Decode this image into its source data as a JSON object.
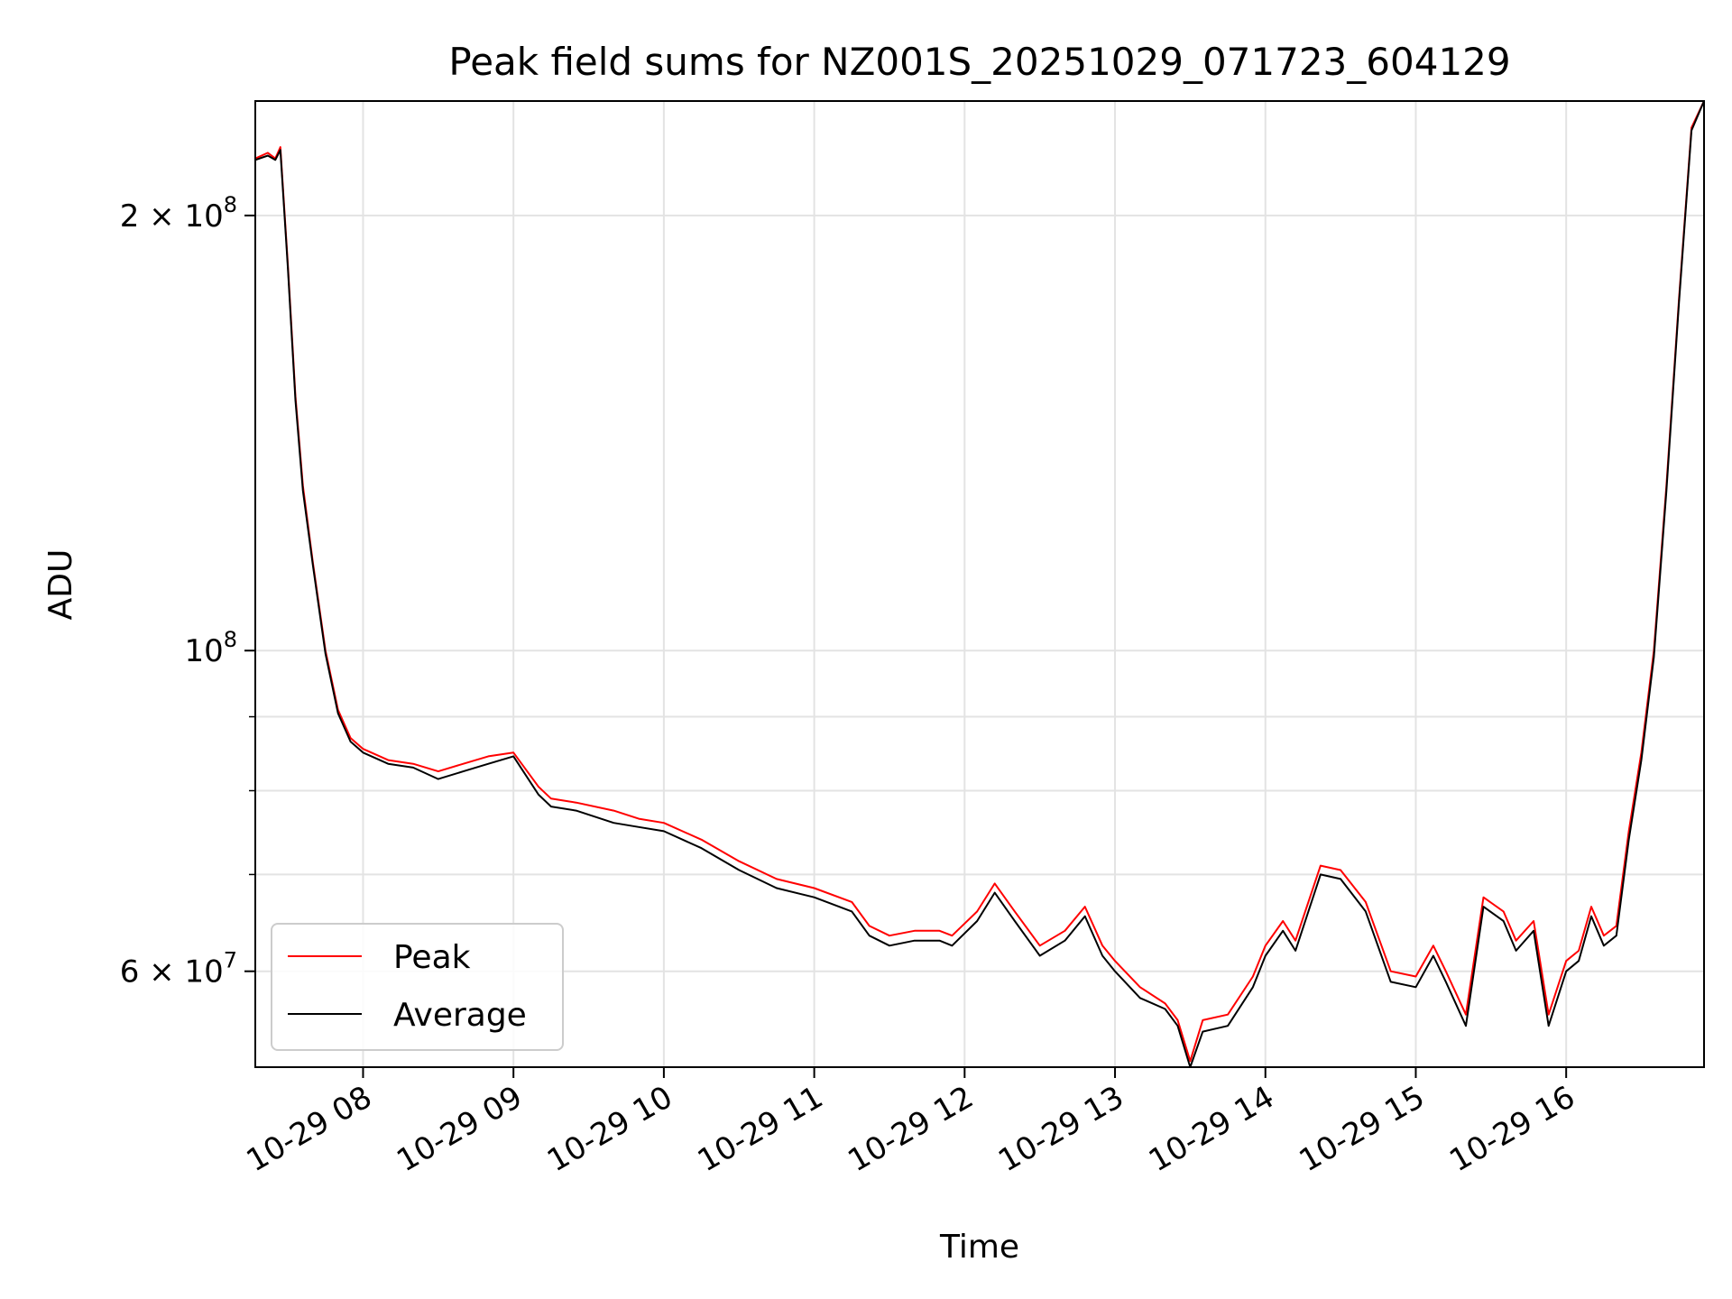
{
  "chart_data": {
    "type": "line",
    "title": "Peak field sums for NZ001S_20251029_071723_604129",
    "xlabel": "Time",
    "ylabel": "ADU",
    "x_range": [
      "2025-10-29 07:17",
      "2025-10-29 16:55"
    ],
    "ylim": [
      51500000,
      240000000
    ],
    "y_scale": "log",
    "grid": true,
    "legend_position": "lower-left",
    "x_ticks": [
      "10-29 08",
      "10-29 09",
      "10-29 10",
      "10-29 11",
      "10-29 12",
      "10-29 13",
      "10-29 14",
      "10-29 15",
      "10-29 16"
    ],
    "y_ticks": [
      {
        "value": 200000000,
        "mantissa": "2",
        "exp": "8"
      },
      {
        "value": 100000000,
        "mantissa": "",
        "exp": "8"
      },
      {
        "value": 60000000,
        "mantissa": "6",
        "exp": "7"
      }
    ],
    "y_minor_ticks": [
      70000000,
      80000000,
      90000000
    ],
    "series": [
      {
        "name": "Peak",
        "color": "#ff0000",
        "x": [
          "2025-10-29 07:17",
          "2025-10-29 07:22",
          "2025-10-29 07:25",
          "2025-10-29 07:27",
          "2025-10-29 07:30",
          "2025-10-29 07:33",
          "2025-10-29 07:36",
          "2025-10-29 07:40",
          "2025-10-29 07:45",
          "2025-10-29 07:50",
          "2025-10-29 07:55",
          "2025-10-29 08:00",
          "2025-10-29 08:10",
          "2025-10-29 08:20",
          "2025-10-29 08:30",
          "2025-10-29 08:40",
          "2025-10-29 08:50",
          "2025-10-29 09:00",
          "2025-10-29 09:10",
          "2025-10-29 09:15",
          "2025-10-29 09:25",
          "2025-10-29 09:40",
          "2025-10-29 09:50",
          "2025-10-29 10:00",
          "2025-10-29 10:15",
          "2025-10-29 10:30",
          "2025-10-29 10:45",
          "2025-10-29 11:00",
          "2025-10-29 11:15",
          "2025-10-29 11:22",
          "2025-10-29 11:30",
          "2025-10-29 11:40",
          "2025-10-29 11:50",
          "2025-10-29 11:55",
          "2025-10-29 12:05",
          "2025-10-29 12:12",
          "2025-10-29 12:20",
          "2025-10-29 12:30",
          "2025-10-29 12:40",
          "2025-10-29 12:48",
          "2025-10-29 12:55",
          "2025-10-29 13:00",
          "2025-10-29 13:10",
          "2025-10-29 13:20",
          "2025-10-29 13:25",
          "2025-10-29 13:30",
          "2025-10-29 13:35",
          "2025-10-29 13:45",
          "2025-10-29 13:55",
          "2025-10-29 14:00",
          "2025-10-29 14:07",
          "2025-10-29 14:12",
          "2025-10-29 14:22",
          "2025-10-29 14:30",
          "2025-10-29 14:40",
          "2025-10-29 14:50",
          "2025-10-29 15:00",
          "2025-10-29 15:07",
          "2025-10-29 15:12",
          "2025-10-29 15:20",
          "2025-10-29 15:27",
          "2025-10-29 15:35",
          "2025-10-29 15:40",
          "2025-10-29 15:47",
          "2025-10-29 15:53",
          "2025-10-29 16:00",
          "2025-10-29 16:05",
          "2025-10-29 16:10",
          "2025-10-29 16:15",
          "2025-10-29 16:20",
          "2025-10-29 16:25",
          "2025-10-29 16:30",
          "2025-10-29 16:35",
          "2025-10-29 16:40",
          "2025-10-29 16:45",
          "2025-10-29 16:50",
          "2025-10-29 16:55"
        ],
        "y": [
          219000000,
          221000000,
          219000000,
          223000000,
          185000000,
          150000000,
          130000000,
          115000000,
          100000000,
          91000000,
          87000000,
          85500000,
          84000000,
          83500000,
          82500000,
          83500000,
          84500000,
          85000000,
          80500000,
          79000000,
          78500000,
          77500000,
          76500000,
          76000000,
          74000000,
          71500000,
          69500000,
          68500000,
          67000000,
          64500000,
          63500000,
          64000000,
          64000000,
          63500000,
          66000000,
          69000000,
          66000000,
          62500000,
          64000000,
          66500000,
          62500000,
          61000000,
          58500000,
          57000000,
          55500000,
          52000000,
          55500000,
          56000000,
          59500000,
          62500000,
          65000000,
          63000000,
          71000000,
          70500000,
          67000000,
          60000000,
          59500000,
          62500000,
          60000000,
          56000000,
          67500000,
          66000000,
          63000000,
          65000000,
          56000000,
          61000000,
          62000000,
          66500000,
          63500000,
          64500000,
          75000000,
          85000000,
          100000000,
          130000000,
          175000000,
          230000000,
          240000000
        ]
      },
      {
        "name": "Average",
        "color": "#000000",
        "x": [
          "2025-10-29 07:17",
          "2025-10-29 07:22",
          "2025-10-29 07:25",
          "2025-10-29 07:27",
          "2025-10-29 07:30",
          "2025-10-29 07:33",
          "2025-10-29 07:36",
          "2025-10-29 07:40",
          "2025-10-29 07:45",
          "2025-10-29 07:50",
          "2025-10-29 07:55",
          "2025-10-29 08:00",
          "2025-10-29 08:10",
          "2025-10-29 08:20",
          "2025-10-29 08:30",
          "2025-10-29 08:40",
          "2025-10-29 08:50",
          "2025-10-29 09:00",
          "2025-10-29 09:10",
          "2025-10-29 09:15",
          "2025-10-29 09:25",
          "2025-10-29 09:40",
          "2025-10-29 09:50",
          "2025-10-29 10:00",
          "2025-10-29 10:15",
          "2025-10-29 10:30",
          "2025-10-29 10:45",
          "2025-10-29 11:00",
          "2025-10-29 11:15",
          "2025-10-29 11:22",
          "2025-10-29 11:30",
          "2025-10-29 11:40",
          "2025-10-29 11:50",
          "2025-10-29 11:55",
          "2025-10-29 12:05",
          "2025-10-29 12:12",
          "2025-10-29 12:20",
          "2025-10-29 12:30",
          "2025-10-29 12:40",
          "2025-10-29 12:48",
          "2025-10-29 12:55",
          "2025-10-29 13:00",
          "2025-10-29 13:10",
          "2025-10-29 13:20",
          "2025-10-29 13:25",
          "2025-10-29 13:30",
          "2025-10-29 13:35",
          "2025-10-29 13:45",
          "2025-10-29 13:55",
          "2025-10-29 14:00",
          "2025-10-29 14:07",
          "2025-10-29 14:12",
          "2025-10-29 14:22",
          "2025-10-29 14:30",
          "2025-10-29 14:40",
          "2025-10-29 14:50",
          "2025-10-29 15:00",
          "2025-10-29 15:07",
          "2025-10-29 15:12",
          "2025-10-29 15:20",
          "2025-10-29 15:27",
          "2025-10-29 15:35",
          "2025-10-29 15:40",
          "2025-10-29 15:47",
          "2025-10-29 15:53",
          "2025-10-29 16:00",
          "2025-10-29 16:05",
          "2025-10-29 16:10",
          "2025-10-29 16:15",
          "2025-10-29 16:20",
          "2025-10-29 16:25",
          "2025-10-29 16:30",
          "2025-10-29 16:35",
          "2025-10-29 16:40",
          "2025-10-29 16:45",
          "2025-10-29 16:50",
          "2025-10-29 16:55"
        ],
        "y": [
          218500000,
          220000000,
          218500000,
          222000000,
          184000000,
          149000000,
          129000000,
          114500000,
          99500000,
          90500000,
          86500000,
          85000000,
          83500000,
          83000000,
          81500000,
          82500000,
          83500000,
          84500000,
          79500000,
          78000000,
          77500000,
          76000000,
          75500000,
          75000000,
          73000000,
          70500000,
          68500000,
          67500000,
          66000000,
          63500000,
          62500000,
          63000000,
          63000000,
          62500000,
          65000000,
          68000000,
          65000000,
          61500000,
          63000000,
          65500000,
          61500000,
          60000000,
          57500000,
          56500000,
          55000000,
          51500000,
          54500000,
          55000000,
          58500000,
          61500000,
          64000000,
          62000000,
          70000000,
          69500000,
          66000000,
          59000000,
          58500000,
          61500000,
          59000000,
          55000000,
          66500000,
          65000000,
          62000000,
          64000000,
          55000000,
          60000000,
          61000000,
          65500000,
          62500000,
          63500000,
          74000000,
          84000000,
          99000000,
          129000000,
          174000000,
          229000000,
          240000000
        ]
      }
    ]
  }
}
